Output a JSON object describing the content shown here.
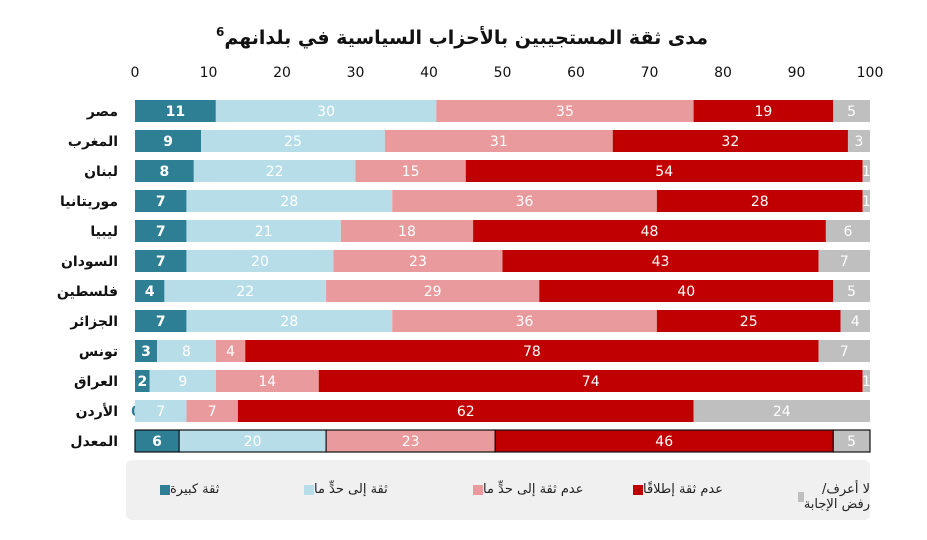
{
  "chart_data": {
    "type": "bar",
    "orientation": "horizontal",
    "stacked": true,
    "title": "مدى ثقة المستجيبين بالأحزاب السياسية في بلدانهم",
    "title_footnote": "6",
    "categories": [
      "مصر",
      "المغرب",
      "لبنان",
      "موريتانيا",
      "ليبيا",
      "السودان",
      "فلسطين",
      "الجزائر",
      "تونس",
      "العراق",
      "الأردن",
      "المعدل"
    ],
    "xlim": [
      0,
      100
    ],
    "xticks": [
      "0",
      "10",
      "20",
      "30",
      "40",
      "50",
      "60",
      "70",
      "80",
      "90",
      "100"
    ],
    "series": [
      {
        "name": "ثقة كبيرة",
        "color": "#2e7f93",
        "values": [
          11,
          9,
          8,
          7,
          7,
          7,
          4,
          7,
          3,
          2,
          0,
          6
        ]
      },
      {
        "name": "ثقة إلى حدٍّ ما",
        "color": "#b7dde8",
        "values": [
          30,
          25,
          22,
          28,
          21,
          20,
          22,
          28,
          8,
          9,
          7,
          20
        ]
      },
      {
        "name": "عدم ثقة إلى حدٍّ ما",
        "color": "#e99a9c",
        "values": [
          35,
          31,
          15,
          36,
          18,
          23,
          29,
          36,
          4,
          14,
          7,
          23
        ]
      },
      {
        "name": "عدم ثقة إطلاقًا",
        "color": "#c00000",
        "values": [
          19,
          32,
          54,
          28,
          48,
          43,
          40,
          25,
          78,
          74,
          62,
          46
        ]
      },
      {
        "name": "لا أعرف/رفض الإجابة",
        "color": "#bfbfbf",
        "values": [
          5,
          3,
          1,
          1,
          6,
          7,
          5,
          4,
          7,
          1,
          24,
          5
        ]
      }
    ],
    "grid": false,
    "legend": "bottom"
  }
}
